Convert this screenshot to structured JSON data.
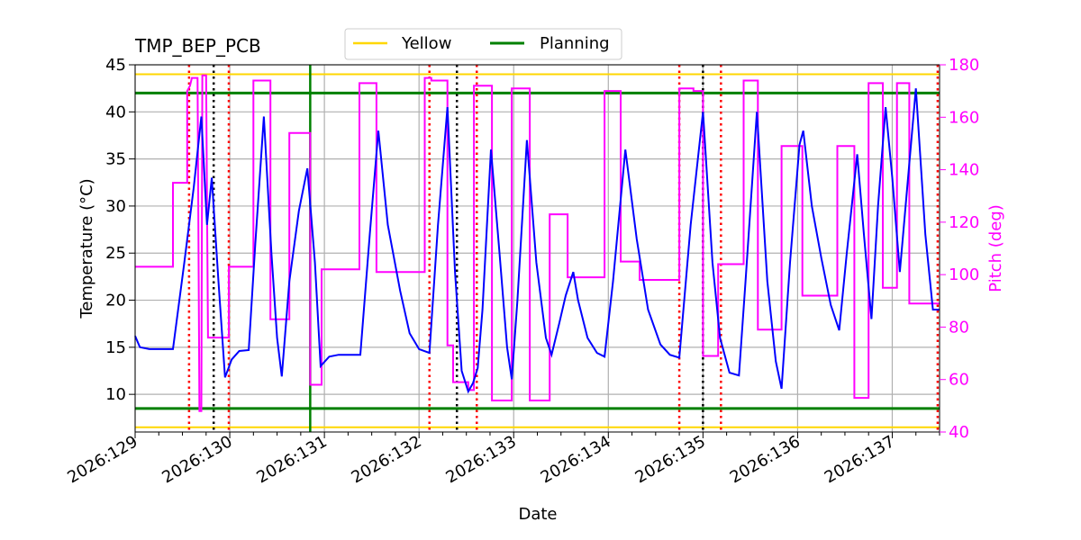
{
  "chart_data": {
    "type": "line",
    "title": "TMP_BEP_PCB",
    "xlabel": "Date",
    "ylabel": "Temperature ($^\\circ$C)",
    "ylabel_display": "Temperature (°C)",
    "y2label": "Pitch (deg)",
    "xlim": [
      129.0,
      137.5
    ],
    "ylim": [
      6.0,
      45.0
    ],
    "y2lim": [
      40,
      180
    ],
    "grid": true,
    "legend_placement": "top-center",
    "x_ticks": [
      {
        "value": 129,
        "label": "2026:129"
      },
      {
        "value": 130,
        "label": "2026:130"
      },
      {
        "value": 131,
        "label": "2026:131"
      },
      {
        "value": 132,
        "label": "2026:132"
      },
      {
        "value": 133,
        "label": "2026:133"
      },
      {
        "value": 134,
        "label": "2026:134"
      },
      {
        "value": 135,
        "label": "2026:135"
      },
      {
        "value": 136,
        "label": "2026:136"
      },
      {
        "value": 137,
        "label": "2026:137"
      }
    ],
    "y_ticks": [
      10,
      15,
      20,
      25,
      30,
      35,
      40,
      45
    ],
    "y2_ticks": [
      40,
      60,
      80,
      100,
      120,
      140,
      160,
      180
    ],
    "colors": {
      "temperature": "#0000ff",
      "pitch": "#ff00ff",
      "yellow": "#ffd700",
      "planning": "#008000",
      "red_markers": "#ff0000",
      "black_markers": "#000000",
      "grid": "#b0b0b0"
    },
    "limit_lines": [
      {
        "name": "Yellow",
        "values": [
          44.0,
          6.5
        ],
        "color": "#ffd700"
      },
      {
        "name": "Planning",
        "values": [
          42.0,
          8.5
        ],
        "color": "#008000"
      }
    ],
    "legend": [
      {
        "label": "Yellow",
        "color": "#ffd700"
      },
      {
        "label": "Planning",
        "color": "#008000"
      }
    ],
    "vertical_lines": {
      "red_dotted": [
        129.57,
        129.99,
        132.11,
        132.61,
        134.75,
        135.19,
        137.48
      ],
      "black_dotted": [
        129.83,
        132.4,
        135.0
      ],
      "green_solid": [
        130.85
      ]
    },
    "series": [
      {
        "axis": "left",
        "points": [
          [
            129.0,
            16.2
          ],
          [
            129.05,
            15.0
          ],
          [
            129.15,
            14.8
          ],
          [
            129.4,
            14.8
          ],
          [
            129.52,
            24.0
          ],
          [
            129.62,
            32.0
          ],
          [
            129.7,
            39.5
          ],
          [
            129.76,
            28.0
          ],
          [
            129.81,
            33.0
          ],
          [
            129.88,
            22.0
          ],
          [
            129.95,
            11.8
          ],
          [
            130.02,
            13.7
          ],
          [
            130.1,
            14.6
          ],
          [
            130.2,
            14.7
          ],
          [
            130.27,
            26.0
          ],
          [
            130.36,
            39.5
          ],
          [
            130.44,
            25.0
          ],
          [
            130.5,
            16.0
          ],
          [
            130.55,
            11.9
          ],
          [
            130.63,
            22.0
          ],
          [
            130.73,
            29.5
          ],
          [
            130.82,
            34.0
          ],
          [
            130.9,
            24.0
          ],
          [
            130.96,
            13.0
          ],
          [
            131.05,
            14.0
          ],
          [
            131.15,
            14.2
          ],
          [
            131.38,
            14.2
          ],
          [
            131.48,
            27.0
          ],
          [
            131.57,
            38.0
          ],
          [
            131.67,
            28.0
          ],
          [
            131.8,
            21.0
          ],
          [
            131.9,
            16.5
          ],
          [
            132.0,
            14.8
          ],
          [
            132.11,
            14.4
          ],
          [
            132.2,
            28.0
          ],
          [
            132.3,
            40.5
          ],
          [
            132.38,
            23.0
          ],
          [
            132.45,
            12.5
          ],
          [
            132.52,
            10.3
          ],
          [
            132.57,
            11.2
          ],
          [
            132.62,
            12.8
          ],
          [
            132.67,
            19.0
          ],
          [
            132.76,
            36.0
          ],
          [
            132.85,
            25.0
          ],
          [
            132.93,
            15.0
          ],
          [
            132.98,
            11.6
          ],
          [
            133.04,
            20.0
          ],
          [
            133.14,
            37.0
          ],
          [
            133.24,
            24.0
          ],
          [
            133.34,
            16.0
          ],
          [
            133.4,
            14.2
          ],
          [
            133.48,
            17.5
          ],
          [
            133.55,
            20.5
          ],
          [
            133.63,
            23.0
          ],
          [
            133.68,
            20.0
          ],
          [
            133.78,
            16.0
          ],
          [
            133.88,
            14.4
          ],
          [
            133.96,
            14.0
          ],
          [
            134.05,
            22.0
          ],
          [
            134.18,
            36.0
          ],
          [
            134.3,
            26.5
          ],
          [
            134.42,
            19.0
          ],
          [
            134.55,
            15.3
          ],
          [
            134.65,
            14.2
          ],
          [
            134.75,
            13.9
          ],
          [
            134.87,
            28.0
          ],
          [
            135.0,
            40.0
          ],
          [
            135.1,
            24.0
          ],
          [
            135.18,
            16.0
          ],
          [
            135.28,
            12.3
          ],
          [
            135.38,
            12.0
          ],
          [
            135.45,
            22.0
          ],
          [
            135.57,
            40.0
          ],
          [
            135.68,
            22.0
          ],
          [
            135.77,
            13.5
          ],
          [
            135.83,
            10.6
          ],
          [
            135.92,
            24.0
          ],
          [
            136.02,
            36.5
          ],
          [
            136.06,
            38.0
          ],
          [
            136.15,
            30.0
          ],
          [
            136.25,
            24.5
          ],
          [
            136.35,
            19.5
          ],
          [
            136.44,
            16.8
          ],
          [
            136.52,
            25.0
          ],
          [
            136.63,
            35.5
          ],
          [
            136.7,
            27.0
          ],
          [
            136.78,
            18.0
          ],
          [
            136.85,
            30.0
          ],
          [
            136.93,
            40.5
          ],
          [
            137.0,
            33.0
          ],
          [
            137.08,
            23.0
          ],
          [
            137.15,
            31.0
          ],
          [
            137.25,
            42.5
          ],
          [
            137.35,
            27.0
          ],
          [
            137.43,
            19.0
          ],
          [
            137.5,
            19.0
          ]
        ]
      },
      {
        "axis": "right",
        "points": [
          [
            129.0,
            103
          ],
          [
            129.4,
            103
          ],
          [
            129.4,
            135
          ],
          [
            129.55,
            135
          ],
          [
            129.55,
            170
          ],
          [
            129.58,
            172
          ],
          [
            129.6,
            175
          ],
          [
            129.66,
            175
          ],
          [
            129.68,
            48
          ],
          [
            129.7,
            48
          ],
          [
            129.71,
            176
          ],
          [
            129.75,
            176
          ],
          [
            129.77,
            76
          ],
          [
            129.99,
            76
          ],
          [
            129.99,
            103
          ],
          [
            130.25,
            103
          ],
          [
            130.25,
            174
          ],
          [
            130.43,
            174
          ],
          [
            130.43,
            83
          ],
          [
            130.63,
            83
          ],
          [
            130.63,
            154
          ],
          [
            130.85,
            154
          ],
          [
            130.85,
            58
          ],
          [
            130.97,
            58
          ],
          [
            130.97,
            102
          ],
          [
            131.37,
            102
          ],
          [
            131.37,
            173
          ],
          [
            131.55,
            173
          ],
          [
            131.55,
            101
          ],
          [
            132.06,
            101
          ],
          [
            132.06,
            175
          ],
          [
            132.13,
            175
          ],
          [
            132.13,
            174
          ],
          [
            132.3,
            174
          ],
          [
            132.3,
            73
          ],
          [
            132.36,
            73
          ],
          [
            132.36,
            59
          ],
          [
            132.52,
            59
          ],
          [
            132.52,
            56
          ],
          [
            132.58,
            56
          ],
          [
            132.58,
            172
          ],
          [
            132.77,
            172
          ],
          [
            132.77,
            52
          ],
          [
            132.98,
            52
          ],
          [
            132.98,
            171
          ],
          [
            133.17,
            171
          ],
          [
            133.17,
            52
          ],
          [
            133.38,
            52
          ],
          [
            133.38,
            123
          ],
          [
            133.57,
            123
          ],
          [
            133.57,
            99
          ],
          [
            133.96,
            99
          ],
          [
            133.96,
            170
          ],
          [
            134.13,
            170
          ],
          [
            134.13,
            105
          ],
          [
            134.33,
            105
          ],
          [
            134.33,
            98
          ],
          [
            134.75,
            98
          ],
          [
            134.75,
            171
          ],
          [
            134.9,
            171
          ],
          [
            134.9,
            170
          ],
          [
            135.0,
            170
          ],
          [
            135.0,
            69
          ],
          [
            135.16,
            69
          ],
          [
            135.16,
            104
          ],
          [
            135.43,
            104
          ],
          [
            135.43,
            174
          ],
          [
            135.58,
            174
          ],
          [
            135.58,
            79
          ],
          [
            135.83,
            79
          ],
          [
            135.83,
            149
          ],
          [
            136.05,
            149
          ],
          [
            136.05,
            92
          ],
          [
            136.42,
            92
          ],
          [
            136.42,
            149
          ],
          [
            136.6,
            149
          ],
          [
            136.6,
            53
          ],
          [
            136.75,
            53
          ],
          [
            136.75,
            173
          ],
          [
            136.9,
            173
          ],
          [
            136.9,
            95
          ],
          [
            137.05,
            95
          ],
          [
            137.05,
            173
          ],
          [
            137.18,
            173
          ],
          [
            137.18,
            89
          ],
          [
            137.5,
            89
          ]
        ]
      }
    ]
  }
}
